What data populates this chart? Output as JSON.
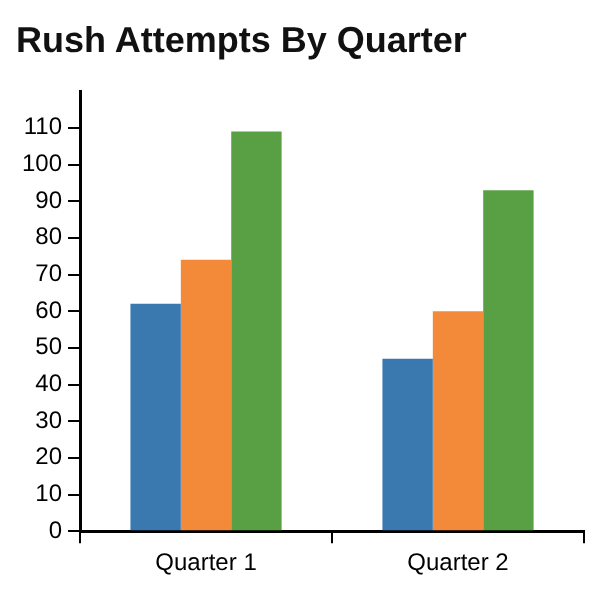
{
  "chart_data": {
    "type": "bar",
    "title": "Rush Attempts By Quarter",
    "categories": [
      "Quarter 1",
      "Quarter 2"
    ],
    "series": [
      {
        "color": "#3a78b0",
        "values": [
          62,
          47
        ]
      },
      {
        "color": "#f28a3a",
        "values": [
          74,
          60
        ]
      },
      {
        "color": "#58a043",
        "values": [
          109,
          93
        ]
      }
    ],
    "ylim": [
      0,
      120
    ],
    "yticks": [
      0,
      10,
      20,
      30,
      40,
      50,
      60,
      70,
      80,
      90,
      100,
      110
    ],
    "grid": false,
    "legend": false
  }
}
